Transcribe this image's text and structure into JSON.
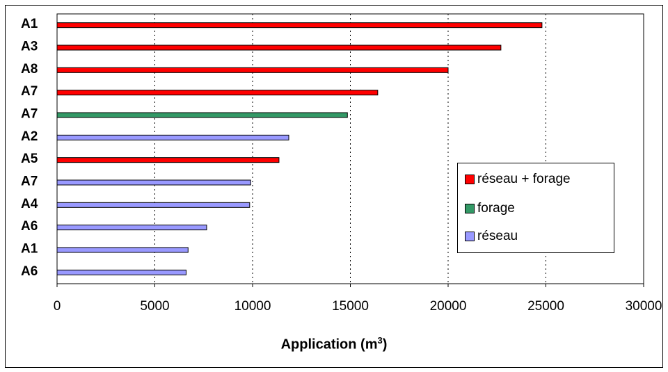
{
  "chart_data": {
    "type": "bar",
    "orientation": "horizontal",
    "categories": [
      "A1",
      "A3",
      "A8",
      "A7",
      "A7",
      "A2",
      "A5",
      "A7",
      "A4",
      "A6",
      "A1",
      "A6"
    ],
    "values": [
      24800,
      22700,
      20000,
      16400,
      14850,
      11850,
      11350,
      9900,
      9850,
      7650,
      6700,
      6600
    ],
    "bar_series": [
      "réseau + forage",
      "réseau + forage",
      "réseau + forage",
      "réseau + forage",
      "forage",
      "réseau",
      "réseau + forage",
      "réseau",
      "réseau",
      "réseau",
      "réseau",
      "réseau"
    ],
    "series": [
      {
        "name": "réseau + forage",
        "color": "#ff0000"
      },
      {
        "name": "forage",
        "color": "#339966"
      },
      {
        "name": "réseau",
        "color": "#9999ff"
      }
    ],
    "xlim": [
      0,
      30000
    ],
    "xticks": [
      "0",
      "5000",
      "10000",
      "15000",
      "20000",
      "25000",
      "30000"
    ],
    "xlabel": "Application (m",
    "xlabel_sup": "3",
    "xlabel_close": ")",
    "grid": "vertical dotted",
    "legend_position": "right"
  }
}
